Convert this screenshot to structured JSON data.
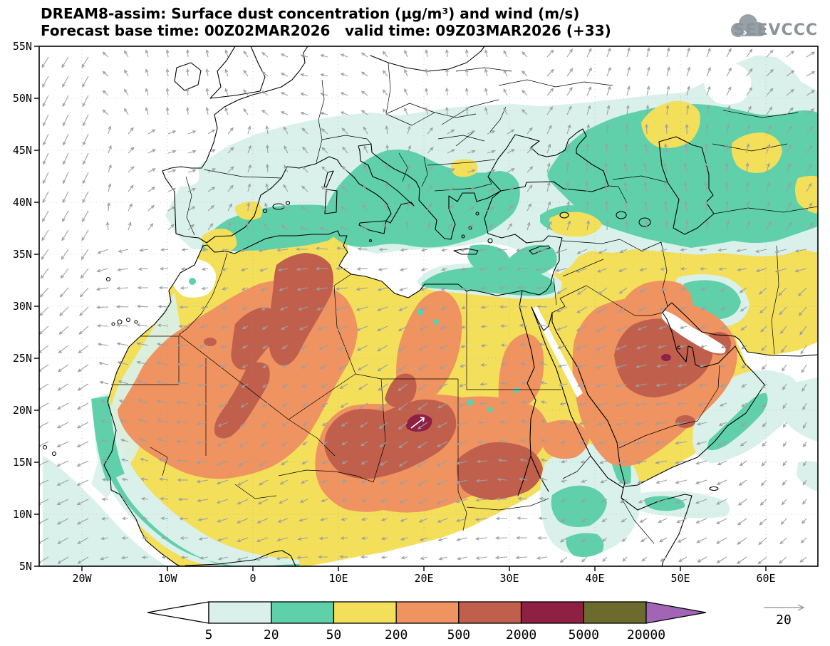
{
  "header": {
    "title": "DREAM8-assim: Surface dust concentration (μg/m³) and wind (m/s)",
    "forecast_base": "Forecast base time: 00Z02MAR2026",
    "valid": "valid time: 09Z03MAR2026 (+33)",
    "logo": "SEEVCCC"
  },
  "map": {
    "x_ticks": [
      "20W",
      "10W",
      "0",
      "10E",
      "20E",
      "30E",
      "40E",
      "50E",
      "60E"
    ],
    "y_ticks": [
      "55N",
      "50N",
      "45N",
      "40N",
      "35N",
      "30N",
      "25N",
      "20N",
      "15N",
      "10N",
      "5N"
    ]
  },
  "colorbar": {
    "labels": [
      "5",
      "20",
      "50",
      "200",
      "500",
      "2000",
      "5000",
      "20000"
    ],
    "colors": [
      "#ffffff",
      "#d9f1ea",
      "#5fd0aa",
      "#f3df5a",
      "#ef9360",
      "#c05f4c",
      "#8e2044",
      "#6b6b2e",
      "#a265b5"
    ]
  },
  "wind_legend": {
    "value": "20"
  },
  "arrow_color": "#9aa0a6"
}
